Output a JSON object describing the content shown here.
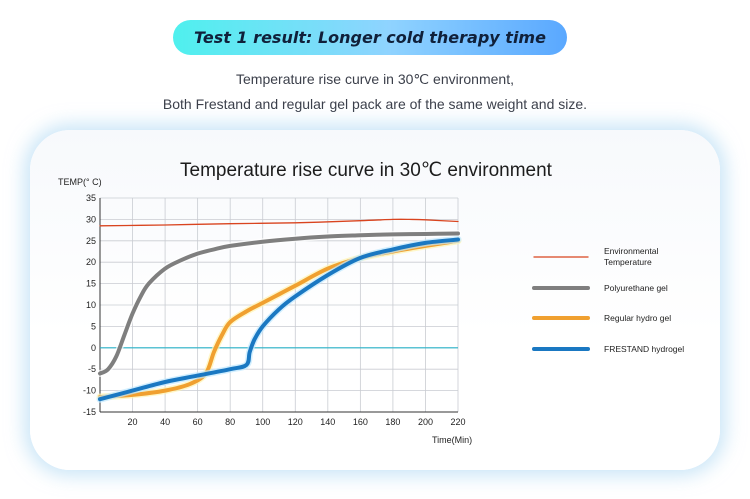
{
  "banner": {
    "title": "Test 1 result: Longer cold therapy time"
  },
  "subtitle": {
    "line1": "Temperature rise curve in 30℃ environment,",
    "line2": "Both Frestand and regular gel pack are of the same weight and size."
  },
  "chart_data": {
    "type": "line",
    "title": "Temperature rise curve in 30℃ environment",
    "ylabel": "TEMP(° C)",
    "xlabel": "Time(Min)",
    "xlim": [
      0,
      220
    ],
    "ylim": [
      -15,
      35
    ],
    "xticks": [
      20,
      40,
      60,
      80,
      100,
      120,
      140,
      160,
      180,
      200,
      220
    ],
    "yticks": [
      -15,
      -10,
      -5,
      0,
      5,
      10,
      15,
      20,
      25,
      30,
      35
    ],
    "grid": true,
    "legend": "right",
    "reference_line": {
      "y": 0,
      "color": "#2bb3c9"
    },
    "series": [
      {
        "name": "Environmental Temperature",
        "color": "#d9441f",
        "x": [
          0,
          40,
          80,
          120,
          160,
          180,
          190,
          200,
          220
        ],
        "y": [
          28.5,
          28.7,
          29,
          29.2,
          29.7,
          30,
          30,
          29.9,
          29.5
        ]
      },
      {
        "name": "Polyurethane gel",
        "color": "#7f7f7f",
        "x": [
          0,
          5,
          10,
          15,
          20,
          25,
          30,
          40,
          50,
          60,
          70,
          80,
          100,
          120,
          140,
          160,
          180,
          200,
          220
        ],
        "y": [
          -6,
          -5,
          -2,
          3,
          8,
          12,
          15,
          18.5,
          20.5,
          22,
          23,
          23.8,
          24.8,
          25.5,
          26,
          26.3,
          26.5,
          26.6,
          26.7
        ]
      },
      {
        "name": "Regular hydro gel",
        "color": "#f0a030",
        "x": [
          0,
          20,
          40,
          55,
          65,
          70,
          75,
          80,
          90,
          100,
          110,
          120,
          140,
          160,
          180,
          200,
          220
        ],
        "y": [
          -11.5,
          -11,
          -10,
          -8.5,
          -6,
          -1,
          3,
          6,
          8.5,
          10.5,
          12.5,
          14.5,
          18.5,
          21,
          22.5,
          23.8,
          25
        ]
      },
      {
        "name": "FRESTAND hydrogel",
        "color": "#1a78c2",
        "x": [
          0,
          20,
          40,
          60,
          80,
          90,
          92,
          95,
          100,
          110,
          120,
          140,
          160,
          180,
          200,
          220
        ],
        "y": [
          -12,
          -10,
          -8,
          -6.5,
          -5,
          -4,
          -1,
          2,
          5,
          9,
          12,
          17,
          21,
          23,
          24.5,
          25.3
        ]
      }
    ],
    "legend_labels": [
      [
        "Environmental",
        "Temperature"
      ],
      [
        "Polyurethane gel"
      ],
      [
        "Regular hydro gel"
      ],
      [
        "FRESTAND hydrogel"
      ]
    ]
  }
}
